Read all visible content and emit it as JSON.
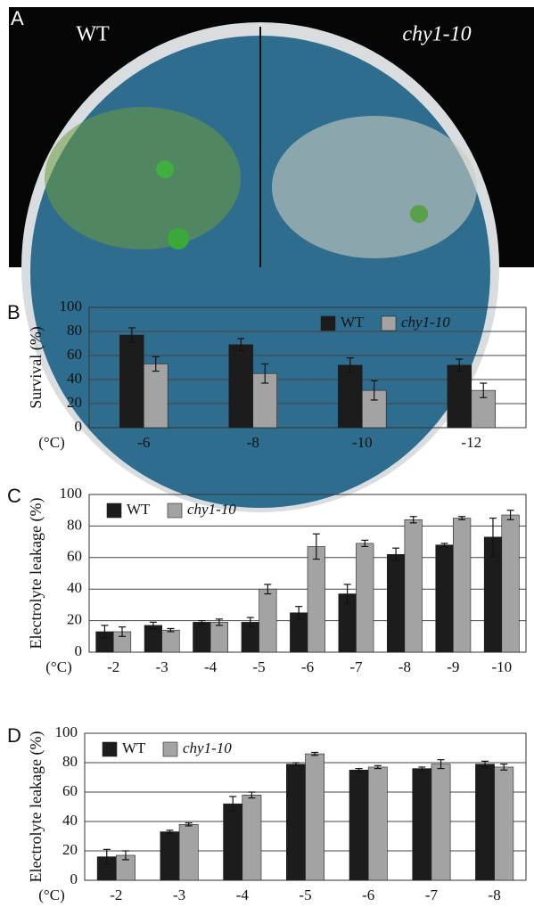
{
  "panel_a": {
    "label": "A",
    "left_label": "WT",
    "right_label": "chy1-10"
  },
  "chart_data": [
    {
      "type": "bar",
      "panel": "B",
      "y_label": "Survival (%)",
      "x_label": "(°C)",
      "categories": [
        "-6",
        "-8",
        "-10",
        "-12"
      ],
      "series": [
        {
          "name": "WT",
          "color": "#1c1c1c",
          "values": [
            77,
            69,
            52,
            52
          ],
          "errors": [
            6,
            5,
            6,
            5
          ]
        },
        {
          "name": "chy1-10",
          "color": "#a3a3a3",
          "values": [
            53,
            45,
            31,
            31
          ],
          "errors": [
            6,
            8,
            8,
            6
          ]
        }
      ],
      "ylim": [
        0,
        100
      ],
      "yticks": [
        0,
        20,
        40,
        60,
        80,
        100
      ],
      "grid": true,
      "legend": "upper right"
    },
    {
      "type": "bar",
      "panel": "C",
      "y_label": "Electrolyte leakage (%)",
      "x_label": "(°C)",
      "categories": [
        "-2",
        "-3",
        "-4",
        "-5",
        "-6",
        "-7",
        "-8",
        "-9",
        "-10"
      ],
      "series": [
        {
          "name": "WT",
          "color": "#1c1c1c",
          "values": [
            13,
            17,
            19,
            19,
            25,
            37,
            62,
            68,
            73
          ],
          "errors": [
            4,
            2,
            1,
            3,
            4,
            6,
            4,
            1,
            12
          ]
        },
        {
          "name": "chy1-10",
          "color": "#a3a3a3",
          "values": [
            13,
            14,
            19,
            40,
            67,
            69,
            84,
            85,
            87
          ],
          "errors": [
            3,
            1,
            2,
            3,
            8,
            2,
            2,
            1,
            3
          ]
        }
      ],
      "ylim": [
        0,
        100
      ],
      "yticks": [
        0,
        20,
        40,
        60,
        80,
        100
      ],
      "grid": true,
      "legend": "upper left"
    },
    {
      "type": "bar",
      "panel": "D",
      "y_label": "Electrolyte leakage (%)",
      "x_label": "(°C)",
      "categories": [
        "-2",
        "-3",
        "-4",
        "-5",
        "-6",
        "-7",
        "-8"
      ],
      "series": [
        {
          "name": "WT",
          "color": "#1c1c1c",
          "values": [
            16,
            33,
            52,
            79,
            75,
            76,
            79
          ],
          "errors": [
            5,
            1,
            5,
            1,
            1,
            1,
            2
          ]
        },
        {
          "name": "chy1-10",
          "color": "#a3a3a3",
          "values": [
            17,
            38,
            58,
            86,
            77,
            79,
            77
          ],
          "errors": [
            3,
            1,
            2,
            1,
            1,
            3,
            2
          ]
        }
      ],
      "ylim": [
        0,
        100
      ],
      "yticks": [
        0,
        20,
        40,
        60,
        80,
        100
      ],
      "grid": true,
      "legend": "upper left"
    }
  ]
}
